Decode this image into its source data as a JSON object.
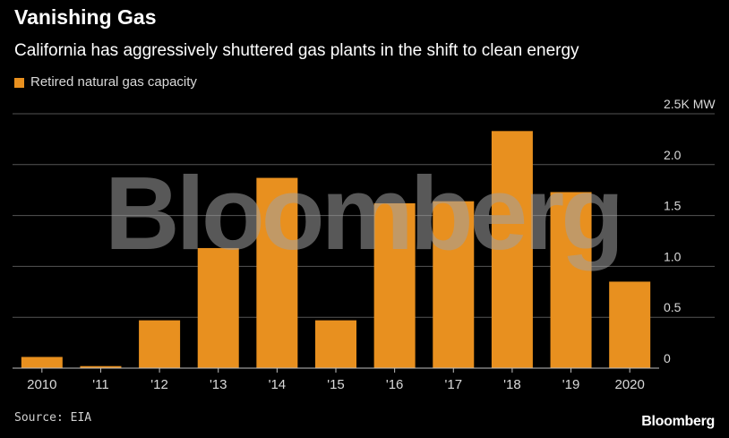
{
  "title": "Vanishing Gas",
  "subtitle": "California has aggressively shuttered gas plants in the shift to clean energy",
  "source": "Source: EIA",
  "brand": "Bloomberg",
  "watermark": "Bloomberg",
  "colors": {
    "bar": "#e8901f",
    "background": "#000000",
    "grid": "#555555",
    "tick": "#d9d9d9"
  },
  "chart_data": {
    "type": "bar",
    "categories": [
      "2010",
      "'11",
      "'12",
      "'13",
      "'14",
      "'15",
      "'16",
      "'17",
      "'18",
      "'19",
      "2020"
    ],
    "series": [
      {
        "name": "Retired natural gas capacity",
        "values": [
          0.11,
          0.02,
          0.47,
          1.18,
          1.87,
          0.47,
          1.62,
          1.64,
          2.33,
          1.73,
          0.85
        ]
      }
    ],
    "ylim": [
      0,
      2.5
    ],
    "yticks": [
      0,
      0.5,
      1.0,
      1.5,
      2.0,
      2.5
    ],
    "ytick_labels": [
      "0",
      "0.5",
      "1.0",
      "1.5",
      "2.0",
      "2.5K MW"
    ],
    "grid": true,
    "legend_position": "top-left"
  }
}
